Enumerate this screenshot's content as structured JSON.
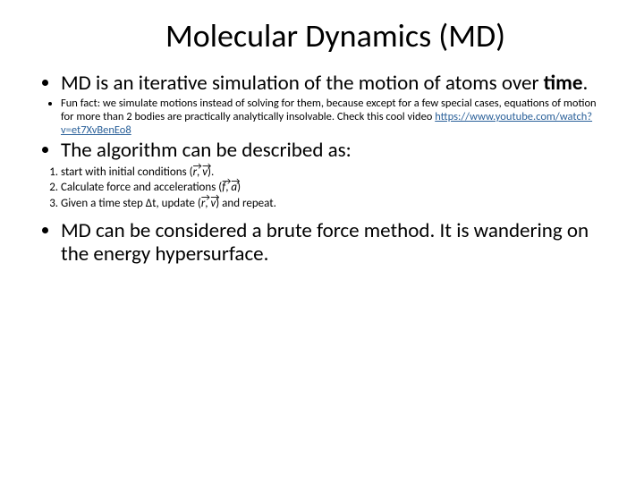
{
  "title": "Molecular Dynamics (MD)",
  "bullets": {
    "b1_pre": "MD is an iterative simulation of the motion of atoms over ",
    "b1_bold": "time",
    "b1_post": ".",
    "funfact_pre": "Fun fact: we simulate motions instead of solving for them, because except for a few special cases, equations of motion for more than 2 bodies are practically analytically insolvable. Check this cool video ",
    "funfact_link": "https://www.youtube.com/watch?v=et7XvBenEo8",
    "algo_intro": "The algorithm can be described as:",
    "step1_a": "start with initial conditions ",
    "step1_b": ".",
    "step2_a": "Calculate force and accelerations ",
    "step3_a": "Given a time step ",
    "step3_dt": "Δt",
    "step3_b": ", update ",
    "step3_c": " and repeat.",
    "b_last": "MD can be considered a brute force method. It is wandering on the energy hypersurface."
  },
  "vectors": {
    "r": "r",
    "v": "v",
    "f": "f",
    "a": "a"
  },
  "style": {
    "text_color": "#000000",
    "link_color": "#2a6099",
    "bg": "#ffffff",
    "title_fontsize": 36,
    "body_fontsize": 23,
    "small_fontsize": 12.5,
    "step_fontsize": 13
  }
}
